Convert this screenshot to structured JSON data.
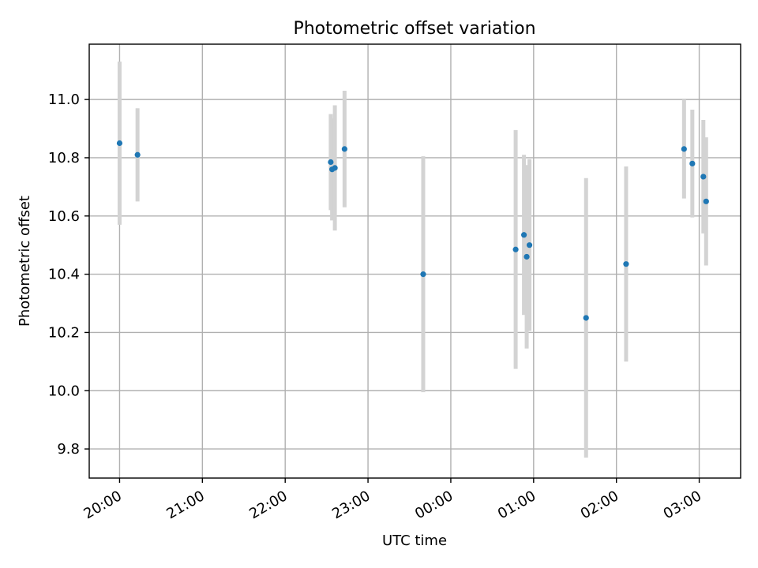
{
  "chart_data": {
    "type": "scatter",
    "title": "Photometric offset variation",
    "xlabel": "UTC time",
    "ylabel": "Photometric offset",
    "grid": true,
    "x_axis": {
      "kind": "time",
      "min": "19:38",
      "max": "03:30",
      "ticks": [
        "20:00",
        "21:00",
        "22:00",
        "23:00",
        "00:00",
        "01:00",
        "02:00",
        "03:00"
      ],
      "tick_label_rotation_deg": 30
    },
    "y_axis": {
      "min": 9.7,
      "max": 11.19,
      "ticks": [
        "9.8",
        "10.0",
        "10.2",
        "10.4",
        "10.6",
        "10.8",
        "11.0"
      ]
    },
    "colors": {
      "points": "#1f77b4",
      "error_bars": "#d3d3d3",
      "grid": "#b0b0b0"
    },
    "series": [
      {
        "points": [
          {
            "x": "20:00",
            "y": 10.85,
            "err": 0.28
          },
          {
            "x": "20:13",
            "y": 10.81,
            "err": 0.16
          },
          {
            "x": "22:33",
            "y": 10.785,
            "err": 0.165
          },
          {
            "x": "22:34",
            "y": 10.76,
            "err": 0.175
          },
          {
            "x": "22:36",
            "y": 10.765,
            "err": 0.215
          },
          {
            "x": "22:43",
            "y": 10.83,
            "err": 0.2
          },
          {
            "x": "23:40",
            "y": 10.4,
            "err": 0.405
          },
          {
            "x": "00:47",
            "y": 10.485,
            "err": 0.41
          },
          {
            "x": "00:53",
            "y": 10.535,
            "err": 0.275
          },
          {
            "x": "00:55",
            "y": 10.46,
            "err": 0.315
          },
          {
            "x": "00:57",
            "y": 10.5,
            "err": 0.295
          },
          {
            "x": "01:38",
            "y": 10.25,
            "err": 0.48
          },
          {
            "x": "02:07",
            "y": 10.435,
            "err": 0.335
          },
          {
            "x": "02:49",
            "y": 10.83,
            "err": 0.17
          },
          {
            "x": "02:55",
            "y": 10.78,
            "err": 0.185
          },
          {
            "x": "03:03",
            "y": 10.735,
            "err": 0.195
          },
          {
            "x": "03:05",
            "y": 10.65,
            "err": 0.22
          }
        ]
      }
    ]
  }
}
